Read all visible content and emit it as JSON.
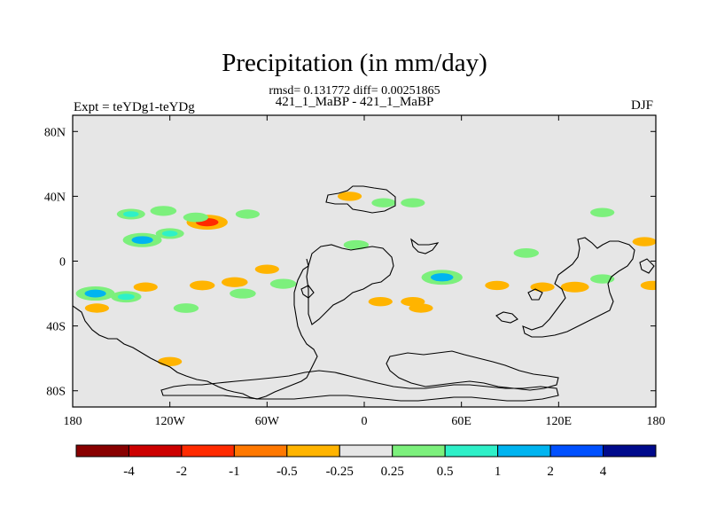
{
  "title": "Precipitation (in mm/day)",
  "stats_line": "rmsd= 0.131772 diff= 0.00251865",
  "case_label": "421_1_MaBP - 421_1_MaBP",
  "experiment_label": "Expt = teYDg1-teYDg",
  "season": "DJF",
  "axes": {
    "lon_ticks": [
      {
        "lon": -180,
        "label": "180"
      },
      {
        "lon": -120,
        "label": "120W"
      },
      {
        "lon": -60,
        "label": "60W"
      },
      {
        "lon": 0,
        "label": "0"
      },
      {
        "lon": 60,
        "label": "60E"
      },
      {
        "lon": 120,
        "label": "120E"
      },
      {
        "lon": 180,
        "label": "180"
      }
    ],
    "lat_ticks": [
      {
        "lat": 80,
        "label": "80N"
      },
      {
        "lat": 40,
        "label": "40N"
      },
      {
        "lat": 0,
        "label": "0"
      },
      {
        "lat": -40,
        "label": "40S"
      },
      {
        "lat": -80,
        "label": "80S"
      }
    ]
  },
  "colorbar": {
    "colors": [
      "#880000",
      "#cc0000",
      "#ff2a00",
      "#ff7800",
      "#ffb400",
      "#e6e6e6",
      "#7cf07c",
      "#2ef0c8",
      "#00b4f0",
      "#0050ff",
      "#000a8c"
    ],
    "labels": [
      "-4",
      "-2",
      "-1",
      "-0.5",
      "-0.25",
      "0.25",
      "0.5",
      "1",
      "2",
      "4"
    ]
  },
  "chart_data": {
    "type": "contour_map",
    "variable": "Precipitation difference",
    "units": "mm/day",
    "lon_range": [
      -180,
      180
    ],
    "lat_range": [
      -90,
      90
    ],
    "levels": [
      -4,
      -2,
      -1,
      -0.5,
      -0.25,
      0.25,
      0.5,
      1,
      2,
      4
    ],
    "background_level_range": [
      -0.25,
      0.25
    ],
    "anomalies": [
      {
        "lon": -144,
        "lat": 29,
        "value": 0.5
      },
      {
        "lon": -124,
        "lat": 31,
        "value": 0.4
      },
      {
        "lon": -97,
        "lat": 24,
        "value": -1.1
      },
      {
        "lon": -104,
        "lat": 27,
        "value": 0.35
      },
      {
        "lon": -72,
        "lat": 29,
        "value": 0.3
      },
      {
        "lon": -137,
        "lat": 13,
        "value": 1.0
      },
      {
        "lon": -120,
        "lat": 17,
        "value": 0.5
      },
      {
        "lon": -166,
        "lat": -20,
        "value": 1.0
      },
      {
        "lon": -147,
        "lat": -22,
        "value": 0.6
      },
      {
        "lon": -165,
        "lat": -29,
        "value": -0.3
      },
      {
        "lon": -135,
        "lat": -16,
        "value": -0.3
      },
      {
        "lon": -100,
        "lat": -15,
        "value": -0.35
      },
      {
        "lon": -80,
        "lat": -13,
        "value": -0.4
      },
      {
        "lon": -75,
        "lat": -20,
        "value": 0.4
      },
      {
        "lon": -50,
        "lat": -14,
        "value": 0.4
      },
      {
        "lon": -60,
        "lat": -5,
        "value": -0.3
      },
      {
        "lon": -110,
        "lat": -29,
        "value": 0.35
      },
      {
        "lon": -9,
        "lat": 40,
        "value": -0.3
      },
      {
        "lon": 12,
        "lat": 36,
        "value": 0.3
      },
      {
        "lon": 30,
        "lat": 36,
        "value": 0.3
      },
      {
        "lon": -5,
        "lat": 10,
        "value": 0.35
      },
      {
        "lon": 48,
        "lat": -10,
        "value": 1.1
      },
      {
        "lon": 30,
        "lat": -25,
        "value": -0.3
      },
      {
        "lon": 10,
        "lat": -25,
        "value": -0.3
      },
      {
        "lon": 35,
        "lat": -29,
        "value": -0.3
      },
      {
        "lon": 100,
        "lat": 5,
        "value": 0.35
      },
      {
        "lon": 82,
        "lat": -15,
        "value": -0.3
      },
      {
        "lon": 110,
        "lat": -16,
        "value": -0.3
      },
      {
        "lon": 130,
        "lat": -16,
        "value": -0.5
      },
      {
        "lon": 147,
        "lat": -11,
        "value": 0.3
      },
      {
        "lon": 173,
        "lat": 12,
        "value": -0.3
      },
      {
        "lon": 178,
        "lat": -15,
        "value": -0.3
      },
      {
        "lon": 147,
        "lat": 30,
        "value": 0.3
      },
      {
        "lon": -120,
        "lat": -62,
        "value": -0.3
      }
    ]
  }
}
